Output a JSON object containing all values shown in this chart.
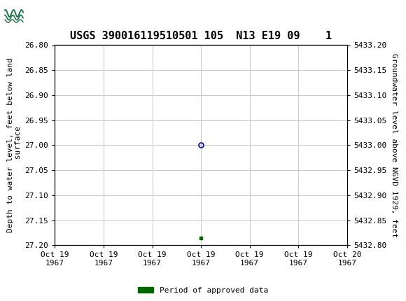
{
  "title": "USGS 390016119510501 105  N13 E19 09    1",
  "ylabel_left": "Depth to water level, feet below land\n surface",
  "ylabel_right": "Groundwater level above NGVD 1929, feet",
  "ylim_left": [
    26.8,
    27.2
  ],
  "ylim_right": [
    5432.8,
    5433.2
  ],
  "yticks_left": [
    26.8,
    26.85,
    26.9,
    26.95,
    27.0,
    27.05,
    27.1,
    27.15,
    27.2
  ],
  "yticks_right": [
    5432.8,
    5432.85,
    5432.9,
    5432.95,
    5433.0,
    5433.05,
    5433.1,
    5433.15,
    5433.2
  ],
  "blue_circle_depth": 27.0,
  "green_square_depth": 27.185,
  "xtick_labels": [
    "Oct 19\n1967",
    "Oct 19\n1967",
    "Oct 19\n1967",
    "Oct 19\n1967",
    "Oct 19\n1967",
    "Oct 19\n1967",
    "Oct 20\n1967"
  ],
  "header_color": "#1a7048",
  "grid_color": "#c8c8c8",
  "background_color": "#ffffff",
  "point_color_blue": "#0000cc",
  "point_color_green": "#006600",
  "legend_label": "Period of approved data",
  "legend_color": "#006600",
  "title_fontsize": 11,
  "axis_label_fontsize": 8,
  "tick_fontsize": 8,
  "font_family": "DejaVu Sans Mono"
}
